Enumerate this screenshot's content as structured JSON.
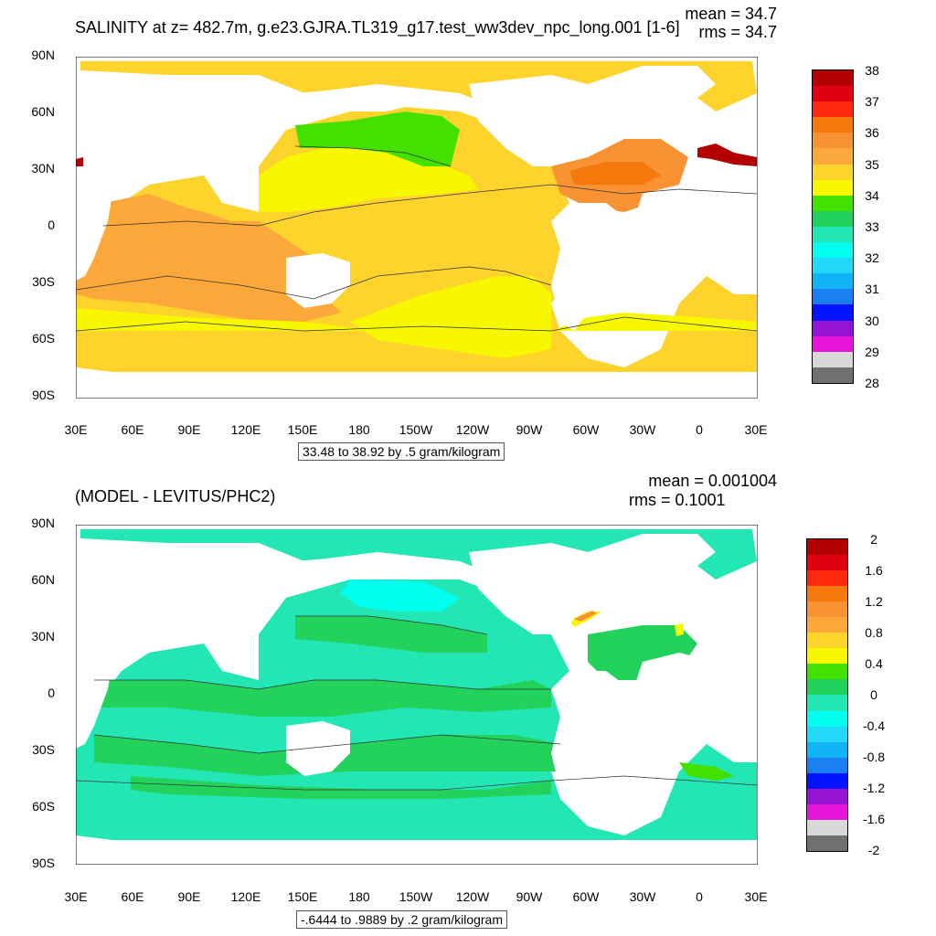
{
  "panel_top": {
    "title": "SALINITY at z= 482.7m, g.e23.GJRA.TL319_g17.test_ww3dev_npc_long.001 [1-6]",
    "mean_label": "mean = 34.7",
    "rms_label": "rms = 34.7",
    "range_note": "33.48 to 38.92 by .5 gram/kilogram",
    "colorbar_labels": [
      "38",
      "37",
      "36",
      "35",
      "34",
      "33",
      "32",
      "31",
      "30",
      "29",
      "28"
    ],
    "colorbar_colors": [
      "#b30000",
      "#e0000f",
      "#ff2a10",
      "#f4780c",
      "#f99232",
      "#fca83a",
      "#fdd32c",
      "#f7f700",
      "#44e000",
      "#22d25a",
      "#22e6b4",
      "#00ffee",
      "#22d8f8",
      "#13b4f6",
      "#1a7ff0",
      "#0014ff",
      "#9613d3",
      "#e414d8",
      "#d8d8d8",
      "#707070"
    ]
  },
  "panel_bottom": {
    "title": "(MODEL - LEVITUS/PHC2)",
    "mean_label": "mean = 0.001004",
    "rms_label": "rms = 0.1001",
    "range_note": "-.6444 to .9889 by .2 gram/kilogram",
    "colorbar_labels": [
      "2",
      "1.6",
      "1.2",
      "0.8",
      "0.4",
      "0",
      "-0.4",
      "-0.8",
      "-1.2",
      "-1.6",
      "-2"
    ],
    "colorbar_colors": [
      "#b30000",
      "#e0000f",
      "#ff2a10",
      "#f4780c",
      "#f99232",
      "#fca83a",
      "#fdd32c",
      "#f7f700",
      "#44e000",
      "#22d25a",
      "#22e6b4",
      "#00ffee",
      "#22d8f8",
      "#13b4f6",
      "#1a7ff0",
      "#0014ff",
      "#9613d3",
      "#e414d8",
      "#d8d8d8",
      "#707070"
    ]
  },
  "axes": {
    "lat_labels": [
      "90N",
      "60N",
      "30N",
      "0",
      "30S",
      "60S",
      "90S"
    ],
    "lon_labels": [
      "30E",
      "60E",
      "90E",
      "120E",
      "150E",
      "180",
      "150W",
      "120W",
      "90W",
      "60W",
      "30W",
      "0",
      "30E"
    ]
  }
}
